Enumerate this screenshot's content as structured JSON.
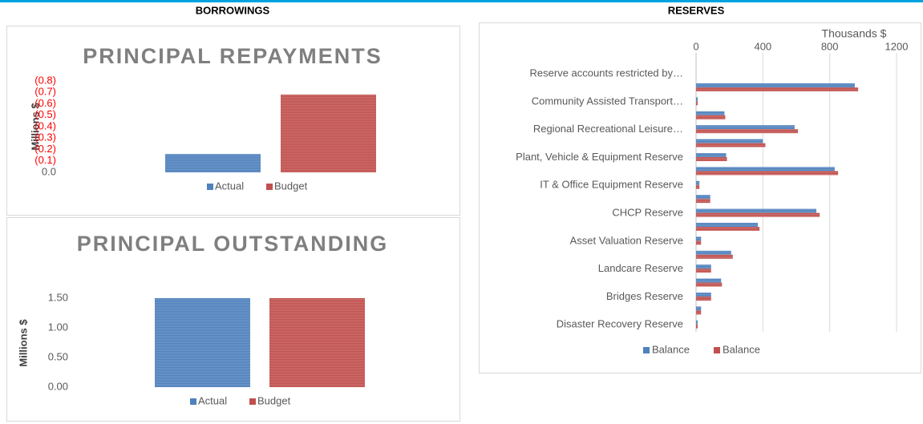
{
  "sections": [
    "BORROWINGS",
    "RESERVES"
  ],
  "chart_data": [
    {
      "type": "bar",
      "title": "PRINCIPAL REPAYMENTS",
      "y_label": "Millions $",
      "categories": [
        null
      ],
      "series": [
        {
          "name": "Actual",
          "color": "#4f81bd",
          "values": [
            -0.16
          ]
        },
        {
          "name": "Budget",
          "color": "#c0504d",
          "values": [
            -0.68
          ]
        }
      ],
      "ylim": [
        0,
        -0.8
      ],
      "yticks": [
        {
          "value": 0,
          "label": "0.0"
        },
        {
          "value": -0.1,
          "label": "(0.1)"
        },
        {
          "value": -0.2,
          "label": "(0.2)"
        },
        {
          "value": -0.3,
          "label": "(0.3)"
        },
        {
          "value": -0.4,
          "label": "(0.4)"
        },
        {
          "value": -0.5,
          "label": "(0.5)"
        },
        {
          "value": -0.6,
          "label": "(0.6)"
        },
        {
          "value": -0.7,
          "label": "(0.7)"
        },
        {
          "value": -0.8,
          "label": "(0.8)"
        }
      ],
      "negative_tick_color": "#ff0000",
      "legend": "bottom"
    },
    {
      "type": "bar",
      "title": "PRINCIPAL OUTSTANDING",
      "y_label": "Millions $",
      "categories": [
        null
      ],
      "series": [
        {
          "name": "Actual",
          "color": "#4f81bd",
          "values": [
            1.5
          ]
        },
        {
          "name": "Budget",
          "color": "#c0504d",
          "values": [
            1.5
          ]
        }
      ],
      "ylim": [
        0,
        1.5
      ],
      "yticks": [
        {
          "value": 0,
          "label": "0.00"
        },
        {
          "value": 0.5,
          "label": "0.50"
        },
        {
          "value": 1,
          "label": "1.00"
        },
        {
          "value": 1.5,
          "label": "1.50"
        }
      ],
      "legend": "bottom"
    },
    {
      "type": "bar",
      "horizontal": true,
      "x_label": "Thousands $",
      "categories": [
        null,
        "Reserve accounts restricted by…",
        null,
        "Community Assisted Transport…",
        null,
        "Regional Recreational Leisure…",
        null,
        "Plant, Vehicle & Equipment Reserve",
        null,
        "IT & Office Equipment Reserve",
        null,
        "CHCP Reserve",
        null,
        "Asset Valuation Reserve",
        null,
        "Landcare Reserve",
        null,
        "Bridges Reserve",
        null,
        "Disaster Recovery Reserve"
      ],
      "series": [
        {
          "name": "Balance",
          "color": "#4f81bd",
          "values": [
            0,
            0,
            950,
            10,
            170,
            590,
            400,
            180,
            830,
            20,
            85,
            720,
            370,
            30,
            210,
            90,
            150,
            90,
            30,
            10
          ]
        },
        {
          "name": "Balance",
          "color": "#c0504d",
          "values": [
            0,
            0,
            970,
            10,
            175,
            610,
            415,
            185,
            850,
            20,
            85,
            740,
            380,
            30,
            220,
            90,
            155,
            90,
            30,
            10
          ]
        }
      ],
      "xlim": [
        0,
        1200
      ],
      "xticks": [
        0,
        400,
        800,
        1200
      ],
      "grid": true,
      "legend": "bottom"
    }
  ]
}
